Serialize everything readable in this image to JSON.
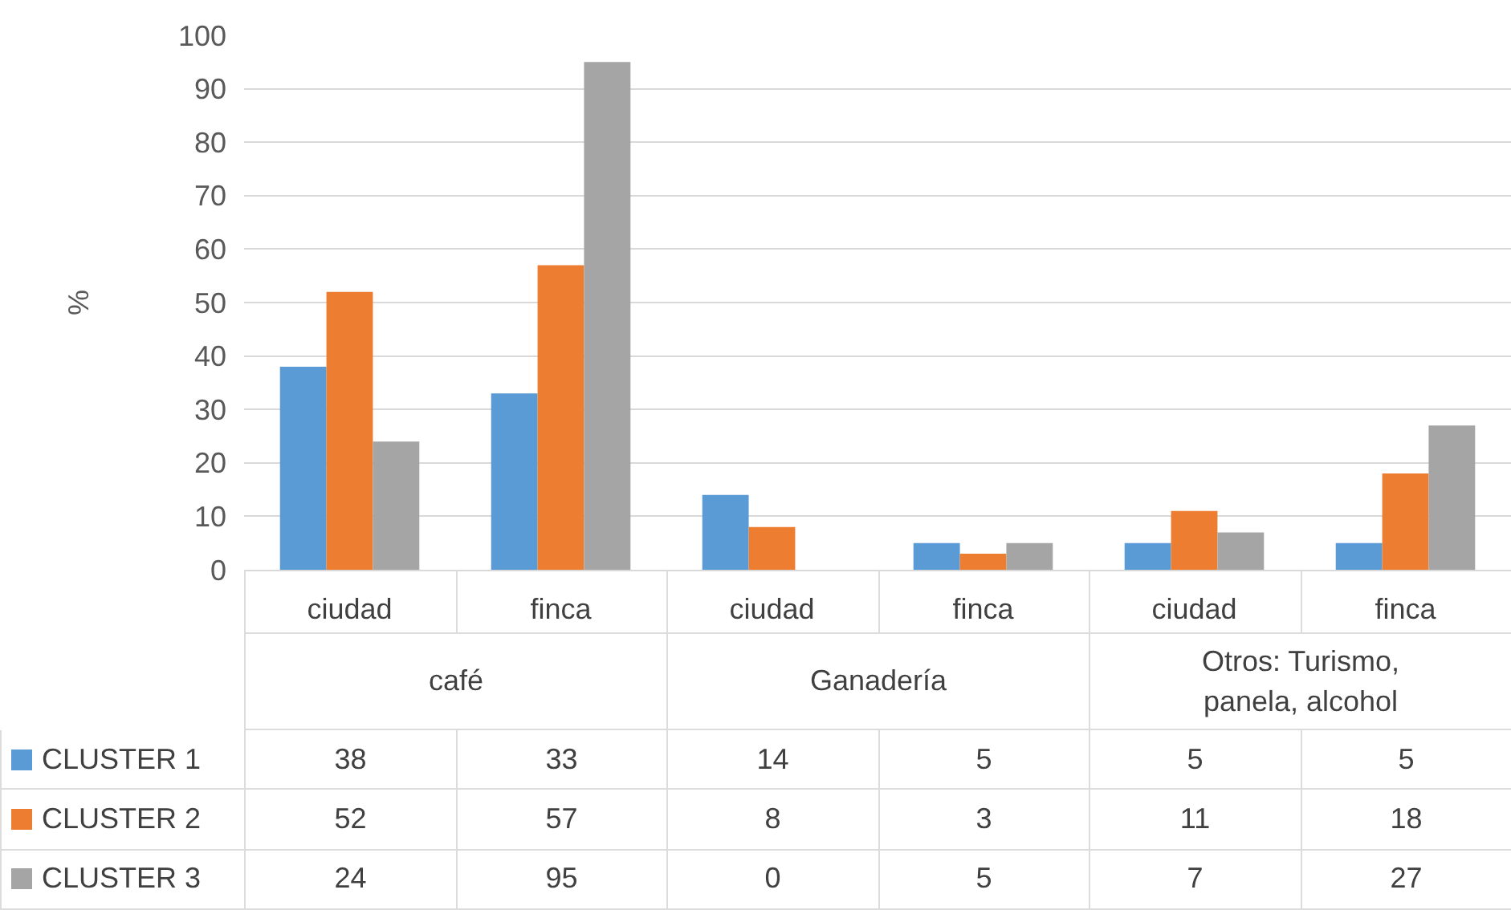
{
  "chart_data": {
    "type": "bar",
    "ylabel": "%",
    "categories": [
      "ciudad",
      "finca",
      "ciudad",
      "finca",
      "ciudad",
      "finca"
    ],
    "annotations": [
      "café",
      "Ganadería",
      "Otros: Turismo, panela, alcohol"
    ],
    "series": [
      {
        "name": "CLUSTER 1",
        "color": "#5b9bd5",
        "values": [
          38,
          33,
          14,
          5,
          5,
          5
        ]
      },
      {
        "name": "CLUSTER 2",
        "color": "#ed7d31",
        "values": [
          52,
          57,
          8,
          3,
          11,
          18
        ]
      },
      {
        "name": "CLUSTER 3",
        "color": "#a5a5a5",
        "values": [
          24,
          95,
          0,
          5,
          7,
          27
        ]
      }
    ],
    "ylim": [
      0,
      100
    ],
    "yticks": [
      0,
      10,
      20,
      30,
      40,
      50,
      60,
      70,
      80,
      90,
      100
    ],
    "grid": "y",
    "data_labels": true,
    "legend": "bottom left"
  }
}
